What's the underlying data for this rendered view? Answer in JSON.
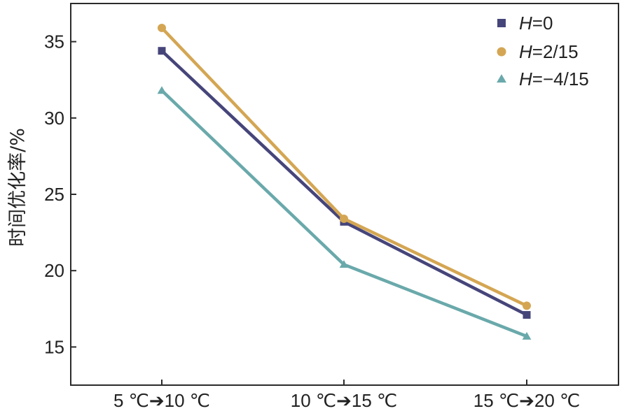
{
  "chart_data": {
    "type": "line",
    "title": "",
    "xlabel": "",
    "ylabel": "时间优化率/%",
    "categories": [
      "5 ℃➔10 ℃",
      "10 ℃➔15 ℃",
      "15 ℃➔20 ℃"
    ],
    "yticks": [
      15,
      20,
      25,
      30,
      35
    ],
    "ylim": [
      12.5,
      37.5
    ],
    "grid": false,
    "legend_position": "top-right",
    "series": [
      {
        "name": "H=0",
        "var": "H",
        "suffix": "=0",
        "marker": "square",
        "color": "#46457a",
        "values": [
          34.4,
          23.2,
          17.1
        ]
      },
      {
        "name": "H=2/15",
        "var": "H",
        "suffix": "=2/15",
        "marker": "circle",
        "color": "#d4a653",
        "values": [
          35.9,
          23.4,
          17.7
        ]
      },
      {
        "name": "H=−4/15",
        "var": "H",
        "suffix": "=−4/15",
        "marker": "triangle",
        "color": "#6aa9ab",
        "values": [
          31.8,
          20.4,
          15.7
        ]
      }
    ]
  }
}
